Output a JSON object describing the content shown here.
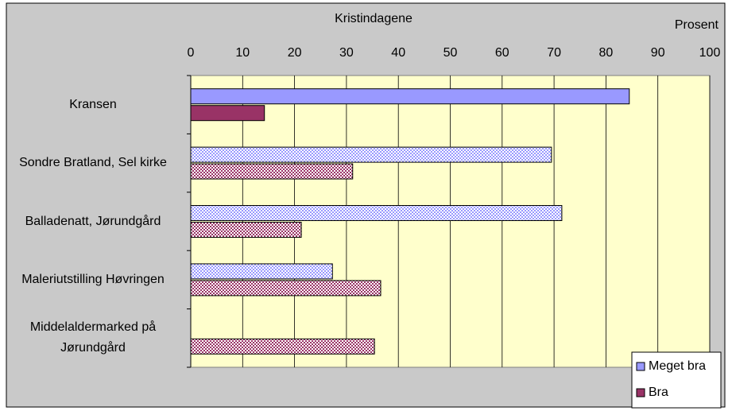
{
  "chart_data": {
    "type": "hbar",
    "title": "Kristindagene",
    "xlabel": "Prosent",
    "categories": [
      "Kransen",
      "Sondre Bratland, Sel kirke",
      "Balladenatt, Jørundgård",
      "Maleriutstilling Høvringen",
      "Middelaldermarked på Jørundgård"
    ],
    "series": [
      {
        "name": "Meget bra",
        "color": "#9999ff",
        "values": [
          84.5,
          69.5,
          71.5,
          27.3,
          null
        ]
      },
      {
        "name": "Bra",
        "color": "#993366",
        "values": [
          14.2,
          31.2,
          21.3,
          36.6,
          35.4
        ]
      }
    ],
    "xlim": [
      0,
      100
    ],
    "xticks": [
      0,
      10,
      20,
      30,
      40,
      50,
      60,
      70,
      80,
      90,
      100
    ],
    "legend": "bottom-right",
    "plot_background": "#ffffcc"
  }
}
